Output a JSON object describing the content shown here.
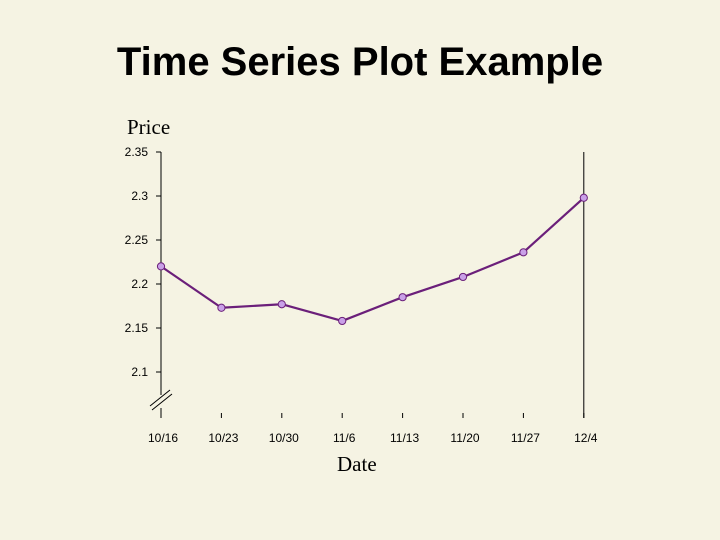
{
  "slide": {
    "title": "Time Series Plot Example"
  },
  "chart_data": {
    "type": "line",
    "title": "",
    "xlabel": "Date",
    "ylabel": "Price",
    "categories": [
      "10/16",
      "10/23",
      "10/30",
      "11/6",
      "11/13",
      "11/20",
      "11/27",
      "12/4"
    ],
    "series": [
      {
        "values": [
          2.22,
          2.173,
          2.177,
          2.158,
          2.185,
          2.208,
          2.236,
          2.298
        ]
      }
    ],
    "yticks": [
      "2.35",
      "2.3",
      "2.25",
      "2.2",
      "2.15",
      "2.1"
    ],
    "ylim": [
      2.1,
      2.35
    ],
    "axis_break": true,
    "grid": false,
    "colors": {
      "line": "#6b1f7a",
      "marker_fill": "#c9a0e8",
      "marker_stroke": "#6b1f7a"
    }
  }
}
